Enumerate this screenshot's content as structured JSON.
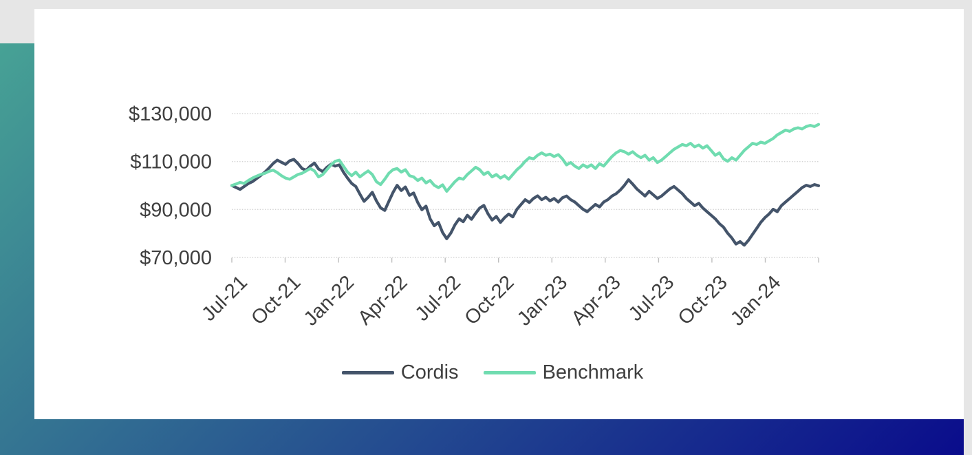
{
  "page": {
    "background_color": "#e6e6e6",
    "panel_color": "#ffffff",
    "accent_gradient_start": "#47a295",
    "accent_gradient_end": "#0a0c8c"
  },
  "chart_data": {
    "type": "line",
    "title": "",
    "xlabel": "",
    "ylabel": "",
    "grid": "horizontal-dotted",
    "legend_position": "bottom-center",
    "x_tick_labels": [
      "Jul-21",
      "Oct-21",
      "Jan-22",
      "Apr-22",
      "Jul-22",
      "Oct-22",
      "Jan-23",
      "Apr-23",
      "Jul-23",
      "Oct-23",
      "Jan-24"
    ],
    "y_tick_labels": [
      "$130,000",
      "$110,000",
      "$90,000",
      "$70,000"
    ],
    "ylim_thousands": [
      70,
      130
    ],
    "y_tick_step_thousands": 20,
    "values_unit": "USD thousands",
    "points_frequency": "weekly",
    "weeks_per_x_tick": 13,
    "axis_text_color": "#3f3f3f",
    "gridline_color": "#d5d5d5",
    "tick_color": "#bfbfbf",
    "series": [
      {
        "name": "Cordis",
        "color": "#44546a",
        "values": [
          100.0,
          99.2,
          98.4,
          99.6,
          100.8,
          101.6,
          102.9,
          104.2,
          105.6,
          107.3,
          109.2,
          110.6,
          109.7,
          108.8,
          110.3,
          110.9,
          109.2,
          107.1,
          106.4,
          108.1,
          109.4,
          106.9,
          105.8,
          107.6,
          108.9,
          108.1,
          108.6,
          105.6,
          103.1,
          100.9,
          99.6,
          96.4,
          93.4,
          95.1,
          97.2,
          93.6,
          90.7,
          89.6,
          93.4,
          97.1,
          100.1,
          97.9,
          99.4,
          95.9,
          96.9,
          92.9,
          89.9,
          91.4,
          86.1,
          83.2,
          84.6,
          80.4,
          77.8,
          80.2,
          83.6,
          86.1,
          84.9,
          87.6,
          85.9,
          88.4,
          90.6,
          91.7,
          88.2,
          85.6,
          87.1,
          84.6,
          86.6,
          88.1,
          86.9,
          90.1,
          92.1,
          94.1,
          92.9,
          94.6,
          95.7,
          94.1,
          95.1,
          93.6,
          94.6,
          93.1,
          94.9,
          95.6,
          94.1,
          93.1,
          91.6,
          90.1,
          89.1,
          90.6,
          92.1,
          91.1,
          93.1,
          94.1,
          95.6,
          96.6,
          98.1,
          100.1,
          102.4,
          100.6,
          98.6,
          97.1,
          95.6,
          97.6,
          96.1,
          94.6,
          95.6,
          97.1,
          98.6,
          99.6,
          98.1,
          96.6,
          94.6,
          93.1,
          91.6,
          92.6,
          90.6,
          89.1,
          87.6,
          86.1,
          84.1,
          82.6,
          80.1,
          78.1,
          75.6,
          76.6,
          75.1,
          77.1,
          79.6,
          82.1,
          84.6,
          86.6,
          88.1,
          90.1,
          89.1,
          91.6,
          93.1,
          94.6,
          96.1,
          97.6,
          99.1,
          100.1,
          99.6,
          100.4,
          99.9
        ]
      },
      {
        "name": "Benchmark",
        "color": "#70dcb0",
        "values": [
          100.0,
          100.6,
          101.3,
          100.9,
          102.1,
          103.1,
          103.9,
          104.6,
          105.1,
          105.9,
          106.4,
          105.4,
          104.1,
          103.1,
          102.6,
          103.6,
          104.6,
          105.1,
          106.1,
          107.1,
          106.1,
          103.6,
          104.6,
          106.6,
          108.6,
          110.1,
          110.6,
          108.1,
          105.6,
          104.1,
          105.6,
          103.6,
          104.9,
          106.1,
          104.6,
          101.6,
          100.4,
          102.6,
          105.1,
          106.6,
          107.1,
          105.6,
          106.6,
          104.1,
          103.6,
          102.1,
          103.1,
          101.1,
          102.1,
          100.1,
          99.1,
          100.3,
          97.6,
          99.6,
          101.6,
          103.1,
          102.6,
          104.6,
          106.1,
          107.6,
          106.6,
          104.6,
          105.6,
          103.6,
          104.6,
          103.1,
          104.1,
          102.6,
          104.6,
          106.6,
          108.1,
          110.1,
          111.6,
          111.1,
          112.6,
          113.6,
          112.6,
          113.1,
          112.1,
          112.9,
          111.1,
          108.6,
          109.6,
          108.1,
          107.1,
          108.6,
          107.6,
          108.6,
          107.1,
          109.1,
          108.1,
          110.1,
          112.1,
          113.6,
          114.6,
          114.1,
          113.1,
          114.1,
          112.6,
          111.6,
          112.6,
          110.6,
          111.6,
          109.6,
          110.6,
          112.1,
          113.6,
          115.1,
          116.1,
          117.1,
          116.6,
          117.6,
          116.1,
          116.9,
          115.6,
          116.6,
          114.6,
          112.6,
          113.6,
          111.1,
          110.1,
          111.6,
          110.6,
          112.6,
          114.6,
          116.1,
          117.6,
          117.1,
          118.1,
          117.6,
          118.6,
          119.6,
          121.1,
          122.1,
          123.1,
          122.6,
          123.6,
          124.1,
          123.6,
          124.6,
          125.1,
          124.6,
          125.5
        ]
      }
    ]
  }
}
